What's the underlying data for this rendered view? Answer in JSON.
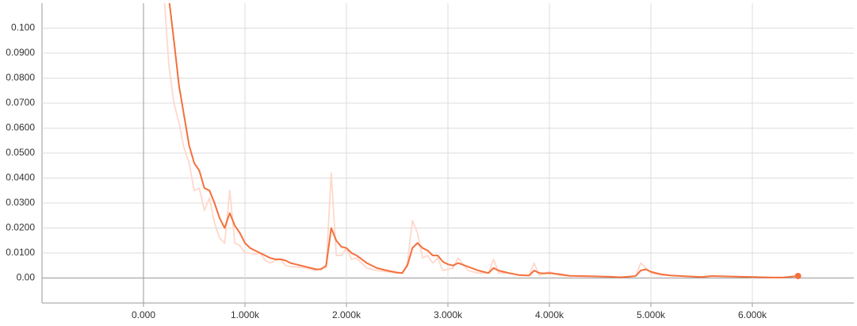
{
  "chart_data": {
    "type": "line",
    "x": [
      200,
      250,
      300,
      350,
      400,
      450,
      500,
      550,
      600,
      650,
      700,
      750,
      800,
      850,
      900,
      950,
      1000,
      1050,
      1100,
      1150,
      1200,
      1250,
      1300,
      1350,
      1400,
      1450,
      1500,
      1600,
      1700,
      1750,
      1800,
      1850,
      1900,
      1950,
      2000,
      2050,
      2100,
      2200,
      2300,
      2400,
      2500,
      2550,
      2600,
      2650,
      2700,
      2750,
      2800,
      2850,
      2900,
      2950,
      3000,
      3050,
      3100,
      3200,
      3300,
      3400,
      3450,
      3500,
      3600,
      3700,
      3800,
      3850,
      3900,
      3950,
      4000,
      4100,
      4200,
      4400,
      4600,
      4700,
      4800,
      4850,
      4900,
      4950,
      5000,
      5100,
      5200,
      5300,
      5500,
      5600,
      5800,
      6000,
      6200,
      6300,
      6450
    ],
    "series": [
      {
        "color": "#ffd8cb",
        "values": [
          0.115,
          0.085,
          0.07,
          0.062,
          0.052,
          0.046,
          0.035,
          0.036,
          0.027,
          0.032,
          0.022,
          0.016,
          0.014,
          0.035,
          0.014,
          0.013,
          0.01,
          0.01,
          0.0095,
          0.01,
          0.007,
          0.006,
          0.007,
          0.0075,
          0.005,
          0.0045,
          0.0045,
          0.004,
          0.003,
          0.004,
          0.004,
          0.042,
          0.009,
          0.009,
          0.012,
          0.0075,
          0.008,
          0.004,
          0.003,
          0.0025,
          0.002,
          0.002,
          0.006,
          0.023,
          0.018,
          0.008,
          0.009,
          0.006,
          0.008,
          0.003,
          0.0035,
          0.004,
          0.008,
          0.003,
          0.002,
          0.002,
          0.0075,
          0.002,
          0.002,
          0.001,
          0.001,
          0.006,
          0.001,
          0.002,
          0.0025,
          0.001,
          0.0008,
          0.0007,
          0.0005,
          0.0003,
          0.0006,
          0.0008,
          0.006,
          0.004,
          0.002,
          0.0012,
          0.001,
          0.0008,
          0.0004,
          0.0008,
          0.0006,
          0.0004,
          0.0002,
          0.0002,
          0.0008
        ]
      },
      {
        "color": "#f4703c",
        "values": [
          0.135,
          0.112,
          0.095,
          0.077,
          0.065,
          0.053,
          0.046,
          0.043,
          0.036,
          0.035,
          0.03,
          0.024,
          0.02,
          0.026,
          0.021,
          0.018,
          0.014,
          0.012,
          0.011,
          0.01,
          0.009,
          0.008,
          0.0075,
          0.0075,
          0.007,
          0.006,
          0.0055,
          0.0045,
          0.0035,
          0.0035,
          0.005,
          0.02,
          0.015,
          0.0125,
          0.012,
          0.01,
          0.009,
          0.006,
          0.004,
          0.003,
          0.0022,
          0.002,
          0.005,
          0.012,
          0.014,
          0.012,
          0.011,
          0.009,
          0.009,
          0.0065,
          0.0055,
          0.005,
          0.006,
          0.0045,
          0.003,
          0.002,
          0.004,
          0.003,
          0.002,
          0.0012,
          0.001,
          0.003,
          0.002,
          0.0018,
          0.002,
          0.0015,
          0.0009,
          0.0007,
          0.0005,
          0.0003,
          0.0006,
          0.0008,
          0.003,
          0.0035,
          0.0025,
          0.0015,
          0.001,
          0.0008,
          0.0004,
          0.0008,
          0.0006,
          0.0004,
          0.0002,
          0.0002,
          0.0008
        ]
      }
    ],
    "xlim": [
      -1000,
      7000
    ],
    "ylim": [
      -0.01,
      0.11
    ],
    "xticks": [
      {
        "value": 0,
        "label": "0.000"
      },
      {
        "value": 1000,
        "label": "1.000k"
      },
      {
        "value": 2000,
        "label": "2.000k"
      },
      {
        "value": 3000,
        "label": "3.000k"
      },
      {
        "value": 4000,
        "label": "4.000k"
      },
      {
        "value": 5000,
        "label": "5.000k"
      },
      {
        "value": 6000,
        "label": "6.000k"
      }
    ],
    "yticks": [
      {
        "value": 0,
        "label": "0.00"
      },
      {
        "value": 0.01,
        "label": "0.0100"
      },
      {
        "value": 0.02,
        "label": "0.0200"
      },
      {
        "value": 0.03,
        "label": "0.0300"
      },
      {
        "value": 0.04,
        "label": "0.0400"
      },
      {
        "value": 0.05,
        "label": "0.0500"
      },
      {
        "value": 0.06,
        "label": "0.0600"
      },
      {
        "value": 0.07,
        "label": "0.0700"
      },
      {
        "value": 0.08,
        "label": "0.0800"
      },
      {
        "value": 0.09,
        "label": "0.0900"
      },
      {
        "value": 0.1,
        "label": "0.100"
      }
    ],
    "grid": true
  }
}
